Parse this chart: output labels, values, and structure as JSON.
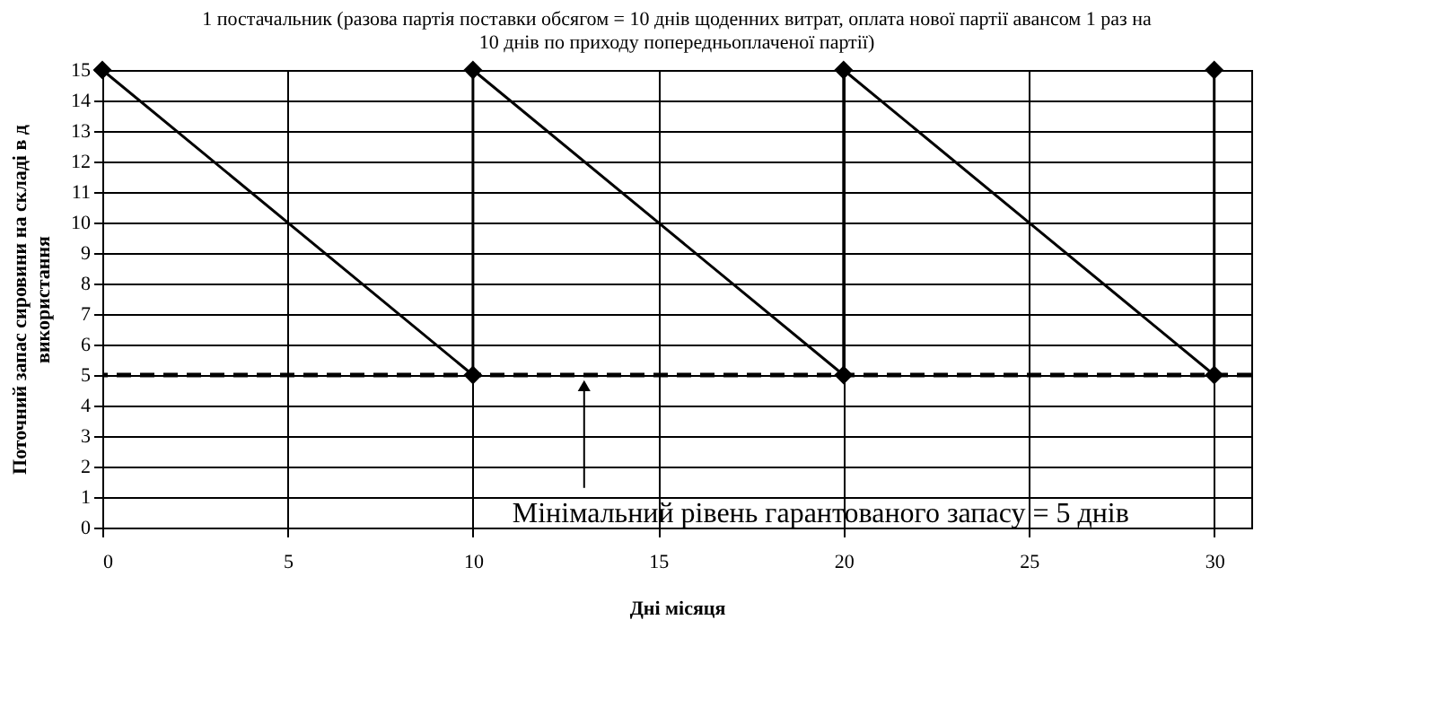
{
  "chart_data": {
    "type": "line",
    "title": [
      "1 постачальник (разова партія поставки обсягом = 10 днів щоденних витрат, оплата нової партії авансом 1 раз на",
      "10 днів по приходу попередньоплаченої партії)"
    ],
    "xlabel": "Дні місяця",
    "ylabel": [
      "Поточний запас сировини на складі в д",
      "використання"
    ],
    "x": [
      0,
      10,
      10,
      20,
      20,
      30,
      30
    ],
    "series": [
      {
        "color": "#000000",
        "values": [
          15,
          5,
          15,
          5,
          15,
          5,
          15
        ]
      }
    ],
    "xlim": [
      0,
      31
    ],
    "xticks": [
      0,
      5,
      10,
      15,
      20,
      25,
      30
    ],
    "ylim": [
      0,
      15
    ],
    "yticks": [
      0,
      1,
      2,
      3,
      4,
      5,
      6,
      7,
      8,
      9,
      10,
      11,
      12,
      13,
      14,
      15
    ],
    "grid": true,
    "marker": "diamond",
    "line_style": "solid",
    "ref_lines": [
      {
        "axis": "y",
        "value": 5,
        "color": "#000000",
        "line_style": "dashed"
      }
    ],
    "annotations": [
      {
        "text": "Мінімальний рівень гарантованого запасу = 5 днів",
        "x": 13,
        "y": 5
      }
    ]
  }
}
